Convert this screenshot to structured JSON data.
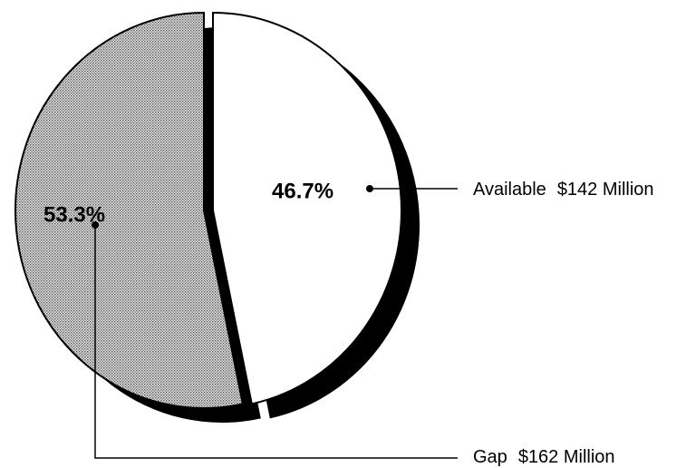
{
  "chart_data": {
    "type": "pie",
    "categories": [
      "Available",
      "Gap"
    ],
    "amount_labels": [
      "$142 Million",
      "$162 Million"
    ],
    "values": [
      46.7,
      53.3
    ],
    "value_labels": [
      "46.7%",
      "53.3%"
    ],
    "colors": [
      "#ffffff",
      "#bdbdbd"
    ]
  }
}
